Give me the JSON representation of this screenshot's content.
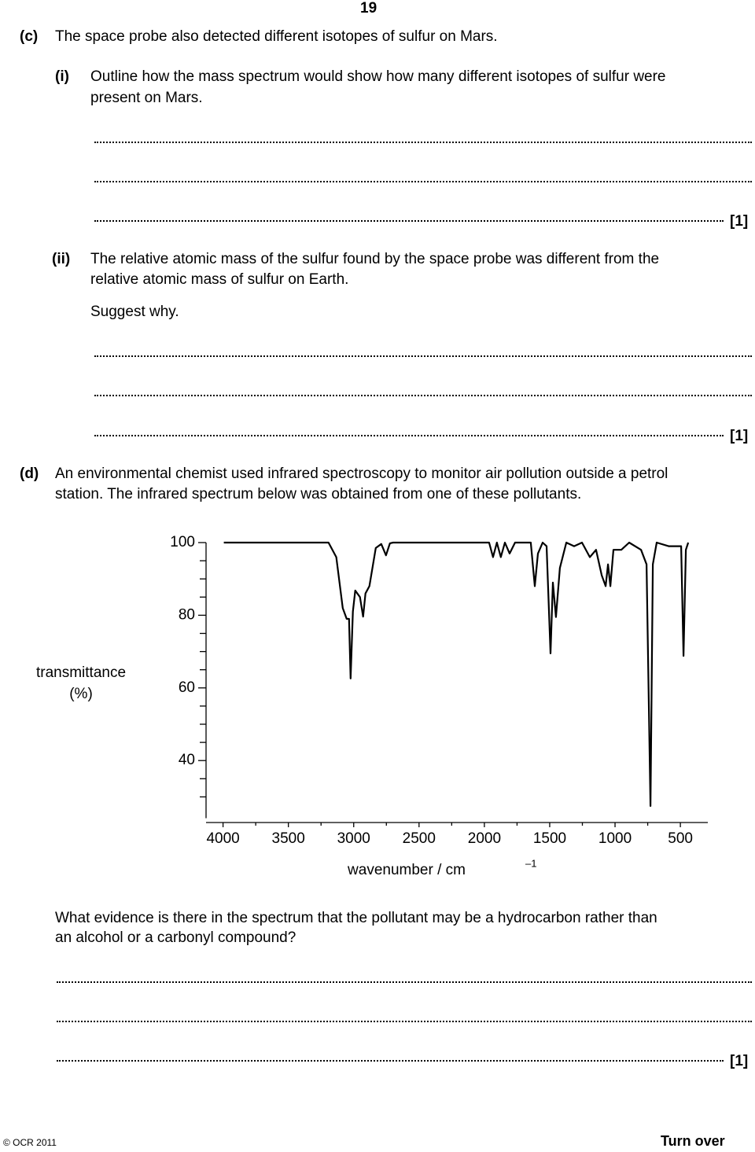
{
  "page_number": "19",
  "c": {
    "label": "(c)",
    "text": "The space probe also detected different isotopes of sulfur on Mars."
  },
  "c_i": {
    "label": "(i)",
    "lines": [
      "Outline how the mass spectrum would show how many different isotopes of sulfur were",
      "present on Mars."
    ],
    "mark": "[1]"
  },
  "c_ii": {
    "label": "(ii)",
    "lines": [
      "The relative atomic mass of the sulfur found by the space probe was different from the",
      "relative atomic mass of sulfur on Earth."
    ],
    "prompt": "Suggest why.",
    "mark": "[1]"
  },
  "d": {
    "label": "(d)",
    "lines": [
      "An environmental chemist used infrared spectroscopy to monitor air pollution outside a petrol",
      "station. The infrared spectrum below was obtained from one of these pollutants."
    ]
  },
  "chart_data": {
    "type": "line",
    "ylabel_lines": [
      "transmittance",
      "(%)"
    ],
    "xlabel": "wavenumber / cm",
    "xlabel_sup": "–1",
    "color": "#000000",
    "xlim": [
      4130,
      290
    ],
    "ylim": [
      25,
      100
    ],
    "xticks": [
      4000,
      3500,
      3000,
      2500,
      2000,
      1500,
      1000,
      500
    ],
    "yticks": [
      100,
      80,
      60,
      40
    ],
    "yminor_ticks": [
      95,
      90,
      85,
      75,
      70,
      65,
      55,
      50,
      45,
      35,
      30
    ],
    "xminor_ticks": [
      3750,
      3250,
      2750,
      2250,
      1750,
      1250,
      750
    ],
    "x": [
      3994,
      3193,
      3133,
      3084,
      3054,
      3036,
      3024,
      3006,
      2988,
      2952,
      2928,
      2910,
      2880,
      2831,
      2789,
      2753,
      2723,
      2699,
      1964,
      1934,
      1904,
      1874,
      1843,
      1807,
      1765,
      1645,
      1614,
      1590,
      1554,
      1524,
      1494,
      1476,
      1452,
      1422,
      1373,
      1313,
      1253,
      1193,
      1145,
      1102,
      1072,
      1054,
      1036,
      1012,
      952,
      892,
      801,
      759,
      729,
      711,
      681,
      590,
      494,
      476,
      458,
      440
    ],
    "values": [
      100,
      100,
      96,
      82,
      79,
      79,
      62.6,
      81,
      86.8,
      85,
      79.6,
      86,
      88,
      98.5,
      99.6,
      96.5,
      99.8,
      100,
      100,
      96,
      100,
      96,
      100,
      97,
      100,
      100,
      88,
      97,
      100,
      99,
      69.5,
      89,
      79.5,
      93,
      100,
      99,
      100,
      96,
      98,
      91,
      88,
      94,
      88,
      98,
      98,
      100,
      98,
      94,
      27.5,
      94,
      100,
      99,
      99,
      68.8,
      98,
      100
    ]
  },
  "d_question": {
    "lines": [
      "What evidence is there in the spectrum that the pollutant may be a hydrocarbon rather than",
      "an alcohol or a carbonyl compound?"
    ],
    "mark": "[1]"
  },
  "footer": {
    "copyright": "© OCR 2011",
    "turn_over": "Turn over"
  }
}
